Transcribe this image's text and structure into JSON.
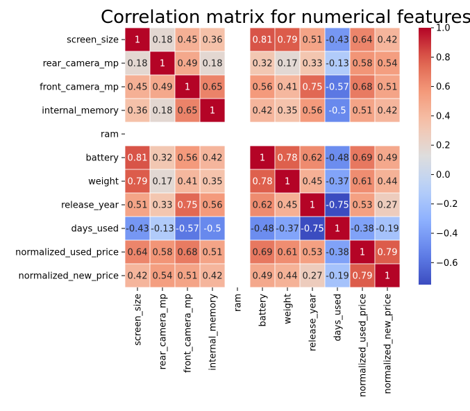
{
  "chart_data": {
    "type": "heatmap",
    "title": "Correlation matrix for numerical features",
    "xlabel": "",
    "ylabel": "",
    "rows": [
      "screen_size",
      "rear_camera_mp",
      "front_camera_mp",
      "internal_memory",
      "ram",
      "battery",
      "weight",
      "release_year",
      "days_used",
      "normalized_used_price",
      "normalized_new_price"
    ],
    "columns": [
      "screen_size",
      "rear_camera_mp",
      "front_camera_mp",
      "internal_memory",
      "ram",
      "battery",
      "weight",
      "release_year",
      "days_used",
      "normalized_used_price",
      "normalized_new_price"
    ],
    "values": [
      [
        1,
        0.18,
        0.45,
        0.36,
        null,
        0.81,
        0.79,
        0.51,
        -0.43,
        0.64,
        0.42
      ],
      [
        0.18,
        1,
        0.49,
        0.18,
        null,
        0.32,
        0.17,
        0.33,
        -0.13,
        0.58,
        0.54
      ],
      [
        0.45,
        0.49,
        1,
        0.65,
        null,
        0.56,
        0.41,
        0.75,
        -0.57,
        0.68,
        0.51
      ],
      [
        0.36,
        0.18,
        0.65,
        1,
        null,
        0.42,
        0.35,
        0.56,
        -0.5,
        0.51,
        0.42
      ],
      [
        null,
        null,
        null,
        null,
        null,
        null,
        null,
        null,
        null,
        null,
        null
      ],
      [
        0.81,
        0.32,
        0.56,
        0.42,
        null,
        1,
        0.78,
        0.62,
        -0.48,
        0.69,
        0.49
      ],
      [
        0.79,
        0.17,
        0.41,
        0.35,
        null,
        0.78,
        1,
        0.45,
        -0.37,
        0.61,
        0.44
      ],
      [
        0.51,
        0.33,
        0.75,
        0.56,
        null,
        0.62,
        0.45,
        1,
        -0.75,
        0.53,
        0.27
      ],
      [
        -0.43,
        -0.13,
        -0.57,
        -0.5,
        null,
        -0.48,
        -0.37,
        -0.75,
        1,
        -0.38,
        -0.19
      ],
      [
        0.64,
        0.58,
        0.68,
        0.51,
        null,
        0.69,
        0.61,
        0.53,
        -0.38,
        1,
        0.79
      ],
      [
        0.42,
        0.54,
        0.51,
        0.42,
        null,
        0.49,
        0.44,
        0.27,
        -0.19,
        0.79,
        1
      ]
    ],
    "colormap": "coolwarm",
    "vmin": -0.75,
    "vmax": 1,
    "colorbar": {
      "ticks": [
        1.0,
        0.8,
        0.6,
        0.4,
        0.2,
        0.0,
        -0.2,
        -0.4,
        -0.6
      ],
      "tick_labels": [
        "1.0",
        "0.8",
        "0.6",
        "0.4",
        "0.2",
        "0.0",
        "−0.2",
        "−0.4",
        "−0.6"
      ]
    },
    "annotations": true,
    "grid": false,
    "legend": "colorbar-right"
  }
}
